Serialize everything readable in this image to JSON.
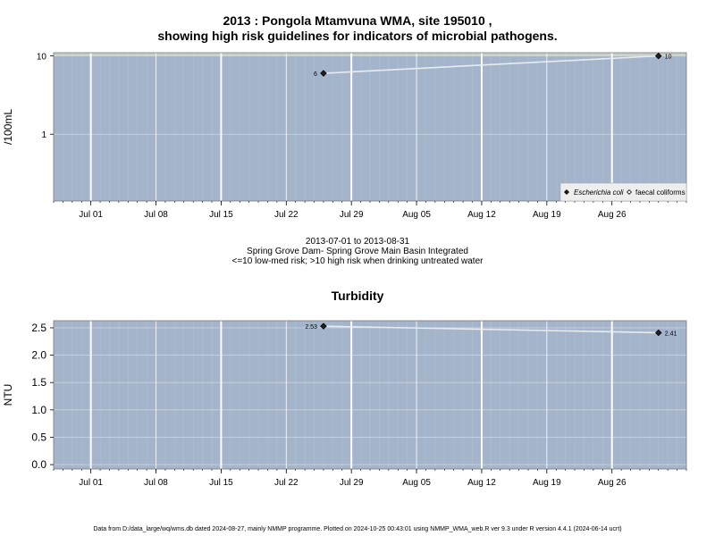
{
  "title_line1": "2013 : Pongola Mtamvuna WMA, site 195010 ,",
  "title_line2": "showing high risk guidelines for indicators of microbial pathogens.",
  "notes": {
    "date_range": "2013-07-01 to 2013-08-31",
    "site_name": "Spring Grove Dam- Spring Grove Main Basin Integrated",
    "risk_note": "<=10 low-med risk; >10 high risk when drinking untreated water"
  },
  "footer": "Data from D:/data_large/wq/wms.db dated 2024-08-27, mainly NMMP programme. Plotted on 2024-10-25 00:43:01 using NMMP_WMA_web.R ver 9.3 under R version 4.4.1 (2024-06-14 ucrt)",
  "colors": {
    "panel_bg": "#a3b4cb",
    "high_risk_band": "#c5d0c6",
    "grid_major": "#ffffff",
    "series_line": "#e8ecf0",
    "point": "#222222"
  },
  "chart_data": [
    {
      "type": "line",
      "title": "",
      "ylabel": "/100mL",
      "yscale": "log",
      "ylim": [
        0.14,
        11
      ],
      "y_ticks": [
        1,
        10
      ],
      "y_tick_labels": [
        "1",
        "10"
      ],
      "high_risk_threshold": 10,
      "xlim": [
        "2013-06-27",
        "2013-09-03"
      ],
      "x_ticks": [
        "2013-07-01",
        "2013-07-08",
        "2013-07-15",
        "2013-07-22",
        "2013-07-29",
        "2013-08-05",
        "2013-08-12",
        "2013-08-19",
        "2013-08-26"
      ],
      "x_tick_labels": [
        "Jul 01",
        "Jul 08",
        "Jul 15",
        "Jul 22",
        "Jul 29",
        "Aug 05",
        "Aug 12",
        "Aug 19",
        "Aug 26"
      ],
      "x_major_grid": [
        "2013-07-01",
        "2013-07-15",
        "2013-07-29",
        "2013-08-12",
        "2013-08-26"
      ],
      "legend": {
        "placement": "bottom-right",
        "entries": [
          {
            "label": "Escherichia coli",
            "marker": "filled-diamond"
          },
          {
            "label": "faecal coliforms",
            "marker": "open-diamond"
          }
        ]
      },
      "series": [
        {
          "name": "Escherichia coli",
          "x": [
            "2013-07-26",
            "2013-08-31"
          ],
          "y": [
            6,
            10
          ],
          "point_labels": [
            "6",
            "10"
          ]
        }
      ]
    },
    {
      "type": "line",
      "title": "Turbidity",
      "ylabel": "NTU",
      "yscale": "linear",
      "ylim": [
        -0.08,
        2.63
      ],
      "y_ticks": [
        0,
        0.5,
        1,
        1.5,
        2,
        2.5
      ],
      "y_tick_labels": [
        "0.0",
        "0.5",
        "1.0",
        "1.5",
        "2.0",
        "2.5"
      ],
      "xlim": [
        "2013-06-27",
        "2013-09-03"
      ],
      "x_ticks": [
        "2013-07-01",
        "2013-07-08",
        "2013-07-15",
        "2013-07-22",
        "2013-07-29",
        "2013-08-05",
        "2013-08-12",
        "2013-08-19",
        "2013-08-26"
      ],
      "x_tick_labels": [
        "Jul 01",
        "Jul 08",
        "Jul 15",
        "Jul 22",
        "Jul 29",
        "Aug 05",
        "Aug 12",
        "Aug 19",
        "Aug 26"
      ],
      "x_major_grid": [
        "2013-07-01",
        "2013-07-15",
        "2013-07-29",
        "2013-08-12",
        "2013-08-26"
      ],
      "series": [
        {
          "x": [
            "2013-07-26",
            "2013-08-31"
          ],
          "y": [
            2.53,
            2.41
          ],
          "point_labels": [
            "2.53",
            "2.41"
          ]
        }
      ]
    }
  ]
}
